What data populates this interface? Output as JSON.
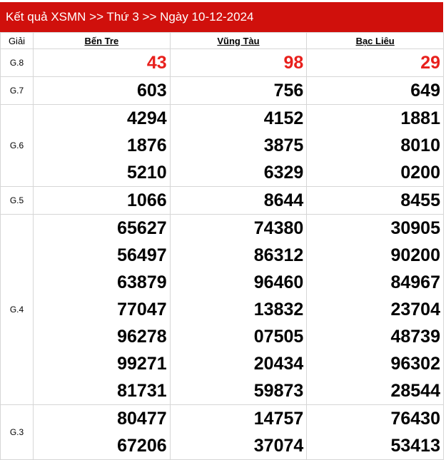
{
  "title": "Kết quả XSMN >> Thứ 3 >> Ngày 10-12-2024",
  "header": {
    "prize": "Giải",
    "provinces": [
      "Bến Tre",
      "Vũng Tàu",
      "Bạc Liêu"
    ]
  },
  "highlight_color": "#e8201c",
  "rows": [
    {
      "prize": "G.8",
      "values": [
        [
          "43"
        ],
        [
          "98"
        ],
        [
          "29"
        ]
      ]
    },
    {
      "prize": "G.7",
      "values": [
        [
          "603"
        ],
        [
          "756"
        ],
        [
          "649"
        ]
      ]
    },
    {
      "prize": "G.6",
      "values": [
        [
          "4294",
          "1876",
          "5210"
        ],
        [
          "4152",
          "3875",
          "6329"
        ],
        [
          "1881",
          "8010",
          "0200"
        ]
      ]
    },
    {
      "prize": "G.5",
      "values": [
        [
          "1066"
        ],
        [
          "8644"
        ],
        [
          "8455"
        ]
      ]
    },
    {
      "prize": "G.4",
      "values": [
        [
          "65627",
          "56497",
          "63879",
          "77047",
          "96278",
          "99271",
          "81731"
        ],
        [
          "74380",
          "86312",
          "96460",
          "13832",
          "07505",
          "20434",
          "59873"
        ],
        [
          "30905",
          "90200",
          "84967",
          "23704",
          "48739",
          "96302",
          "28544"
        ]
      ]
    },
    {
      "prize": "G.3",
      "values": [
        [
          "80477",
          "67206"
        ],
        [
          "14757",
          "37074"
        ],
        [
          "76430",
          "53413"
        ]
      ]
    }
  ]
}
